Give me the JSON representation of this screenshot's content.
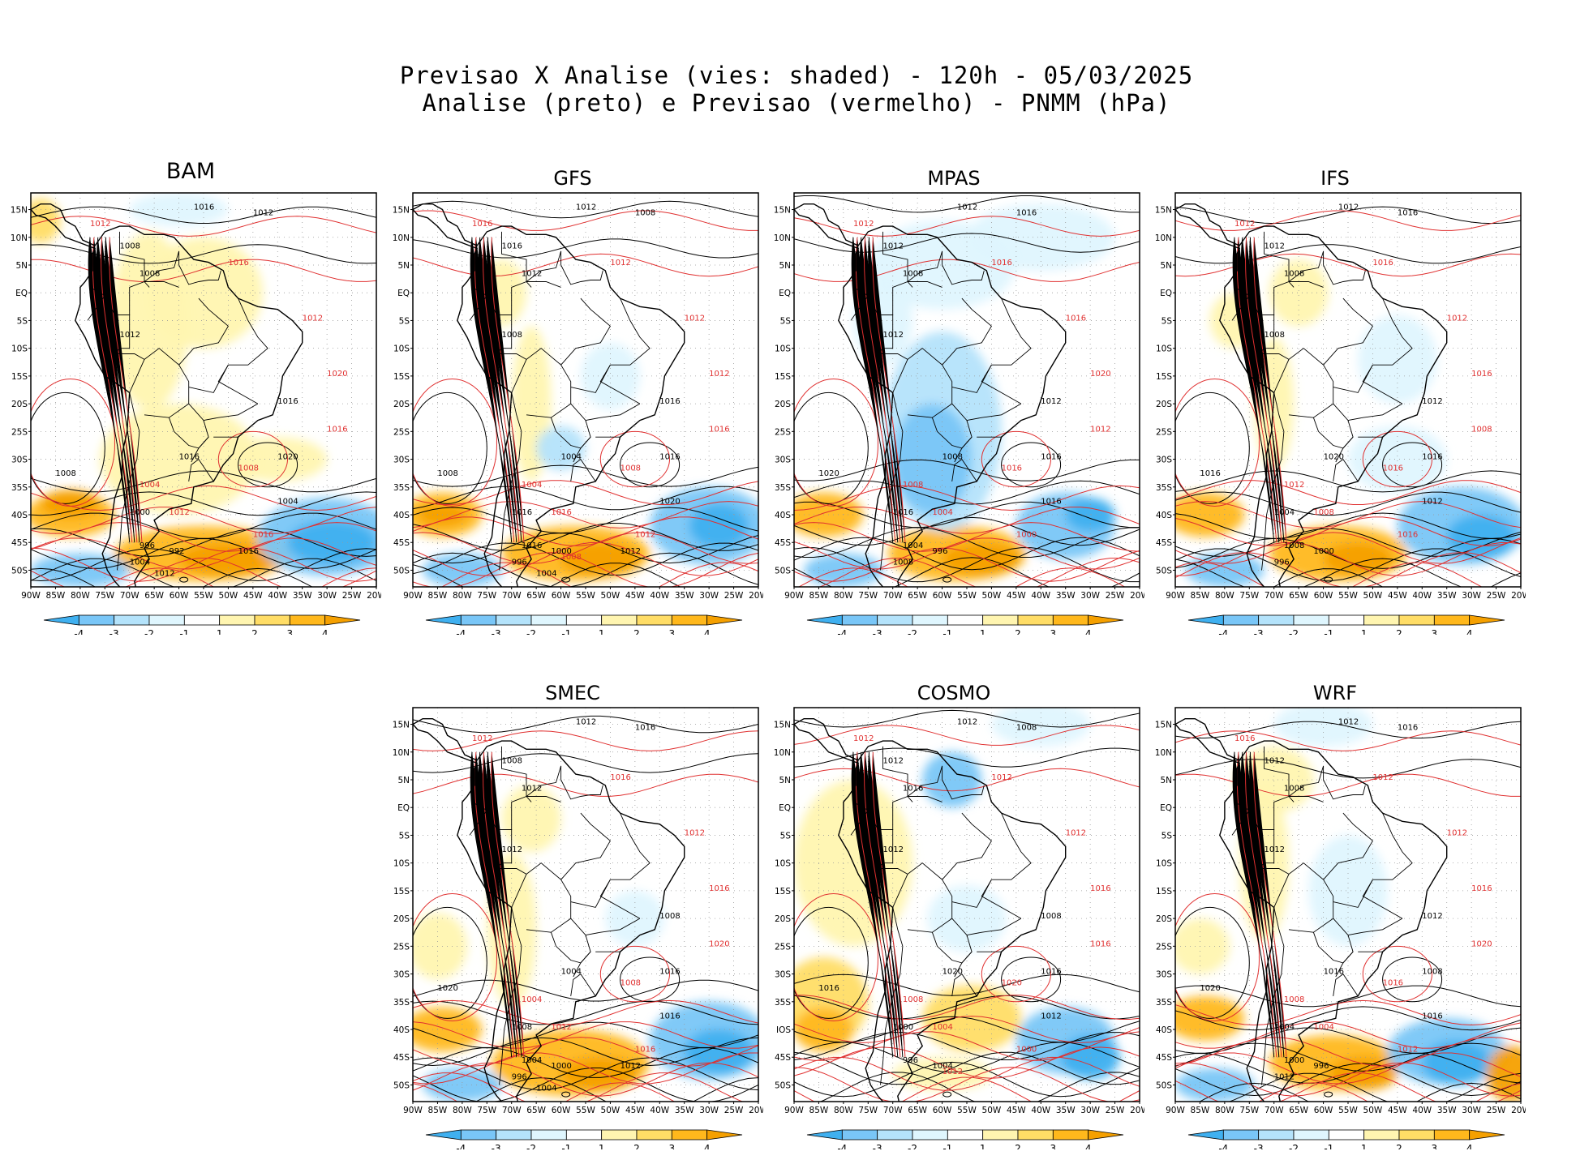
{
  "title_line1": "Previsao X Analise (vies: shaded) - 120h - 05/03/2025",
  "title_line2": "Analise (preto) e Previsao (vermelho) - PNMM (hPa)",
  "lat_labels": [
    "15N",
    "10N",
    "5N",
    "EQ",
    "5S",
    "10S",
    "15S",
    "20S",
    "25S",
    "30S",
    "35S",
    "40S",
    "45S",
    "50S"
  ],
  "lat_labels_cosmo": [
    "15N",
    "10N",
    "5N",
    "EQ",
    "5S",
    "10S",
    "15S",
    "20S",
    "25S",
    "30S",
    "35S",
    "IOS",
    "45S",
    "50S"
  ],
  "lon_labels": [
    "90W",
    "85W",
    "80W",
    "75W",
    "70W",
    "65W",
    "60W",
    "55W",
    "50W",
    "45W",
    "40W",
    "35W",
    "30W",
    "25W",
    "20W"
  ],
  "colorbar_labels": [
    "-4",
    "-3",
    "-2",
    "-1",
    "1",
    "2",
    "3",
    "4"
  ],
  "colors": {
    "bias": [
      "#3fb0f0",
      "#79c6f7",
      "#b4e3fb",
      "#dff6fe",
      "#ffffff",
      "#fff5b0",
      "#ffdd66",
      "#ffb81c",
      "#f5a000"
    ],
    "analysis_contour": "#000000",
    "forecast_contour": "#e03030"
  },
  "panels": [
    {
      "name": "BAM",
      "labels_black": [
        "1016",
        "1012",
        "1008",
        "1008",
        "1012",
        "1016",
        "1020",
        "1016",
        "1008",
        "1004",
        "1000",
        "996",
        "992",
        "1004",
        "1012",
        "1016"
      ],
      "labels_red": [
        "1012",
        "1016",
        "1012",
        "1020",
        "1016",
        "1008",
        "1004",
        "1012",
        "1016"
      ]
    },
    {
      "name": "GFS",
      "labels_black": [
        "1012",
        "1008",
        "1016",
        "1012",
        "1008",
        "1016",
        "1016",
        "1004",
        "1008",
        "1020",
        "1016",
        "1016",
        "1000",
        "996",
        "1004",
        "1012"
      ],
      "labels_red": [
        "1016",
        "1012",
        "1012",
        "1012",
        "1016",
        "1008",
        "1004",
        "1016",
        "1012",
        "1008"
      ]
    },
    {
      "name": "MPAS",
      "labels_black": [
        "1012",
        "1016",
        "1012",
        "1008",
        "1012",
        "1012",
        "1016",
        "1008",
        "1020",
        "1016",
        "1016",
        "1004",
        "996",
        "1008"
      ],
      "labels_red": [
        "1012",
        "1016",
        "1016",
        "1020",
        "1012",
        "1016",
        "1008",
        "1004",
        "1000"
      ]
    },
    {
      "name": "IFS",
      "labels_black": [
        "1012",
        "1016",
        "1012",
        "1008",
        "1008",
        "1012",
        "1016",
        "1020",
        "1016",
        "1012",
        "1004",
        "1008",
        "1000",
        "996"
      ],
      "labels_red": [
        "1012",
        "1016",
        "1012",
        "1016",
        "1008",
        "1016",
        "1012",
        "1008",
        "1016"
      ]
    },
    {
      "name": "SMEC",
      "labels_black": [
        "1012",
        "1016",
        "1008",
        "1012",
        "1012",
        "1008",
        "1016",
        "1004",
        "1020",
        "1016",
        "1008",
        "1004",
        "1000",
        "996",
        "1004",
        "1012"
      ],
      "labels_red": [
        "1012",
        "1016",
        "1012",
        "1016",
        "1020",
        "1008",
        "1004",
        "1012",
        "1016"
      ]
    },
    {
      "name": "COSMO",
      "labels_black": [
        "1012",
        "1008",
        "1012",
        "1016",
        "1012",
        "1008",
        "1016",
        "1020",
        "1016",
        "1012",
        "1000",
        "996",
        "1004"
      ],
      "labels_red": [
        "1012",
        "1012",
        "1012",
        "1016",
        "1016",
        "1020",
        "1008",
        "1004",
        "1000",
        "1012"
      ]
    },
    {
      "name": "WRF",
      "labels_black": [
        "1012",
        "1016",
        "1012",
        "1008",
        "1012",
        "1012",
        "1008",
        "1016",
        "1020",
        "1016",
        "1004",
        "1000",
        "996",
        "1012"
      ],
      "labels_red": [
        "1016",
        "1012",
        "1012",
        "1016",
        "1020",
        "1016",
        "1008",
        "1004",
        "1012"
      ]
    }
  ]
}
